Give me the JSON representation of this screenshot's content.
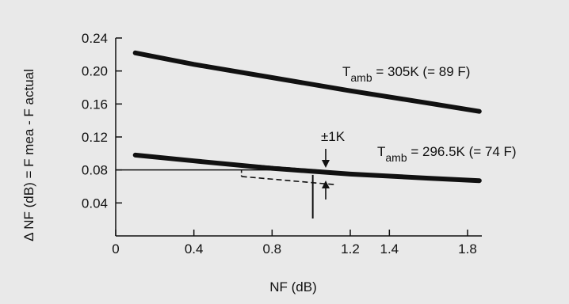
{
  "chart_data": {
    "type": "line",
    "xlabel": "NF (dB)",
    "ylabel": "Δ NF (dB) = F mea - F actual",
    "xlim": [
      0,
      1.9
    ],
    "ylim": [
      0,
      0.26
    ],
    "xticks": [
      0,
      0.4,
      0.8,
      1.2,
      1.4,
      1.8
    ],
    "xtick_labels": [
      "0",
      "0.4",
      "0.8",
      "1.2",
      "1.4",
      "1.8"
    ],
    "yticks": [
      0.04,
      0.08,
      0.12,
      0.16,
      0.2,
      0.24
    ],
    "ytick_labels": [
      "0.04",
      "0.08",
      "0.12",
      "0.16",
      "0.20",
      "0.24"
    ],
    "grid": false,
    "series": [
      {
        "name": "T_amb = 305K (= 89 F)",
        "x": [
          0.1,
          0.4,
          0.8,
          1.2,
          1.6,
          1.86
        ],
        "y": [
          0.222,
          0.208,
          0.192,
          0.176,
          0.161,
          0.151
        ]
      },
      {
        "name": "T_amb = 296.5K (= 74 F)",
        "x": [
          0.1,
          0.4,
          0.8,
          1.2,
          1.6,
          1.86
        ],
        "y": [
          0.098,
          0.091,
          0.082,
          0.075,
          0.07,
          0.067
        ]
      }
    ],
    "reference": {
      "x": 0.8,
      "y": 0.08
    },
    "band": {
      "x": [
        0.7,
        1.1
      ],
      "y_upper": [
        0.088,
        0.08
      ],
      "y_lower": [
        0.074,
        0.066
      ]
    },
    "marker_x": 1.0,
    "annotations": {
      "upper_T": "T",
      "upper_sub": "amb",
      "upper_value": " = 305K (= 89 F)",
      "lower_T": "T",
      "lower_sub": "amb",
      "lower_value": " = 296.5K (= 74 F)",
      "tolerance": "±1K"
    }
  }
}
